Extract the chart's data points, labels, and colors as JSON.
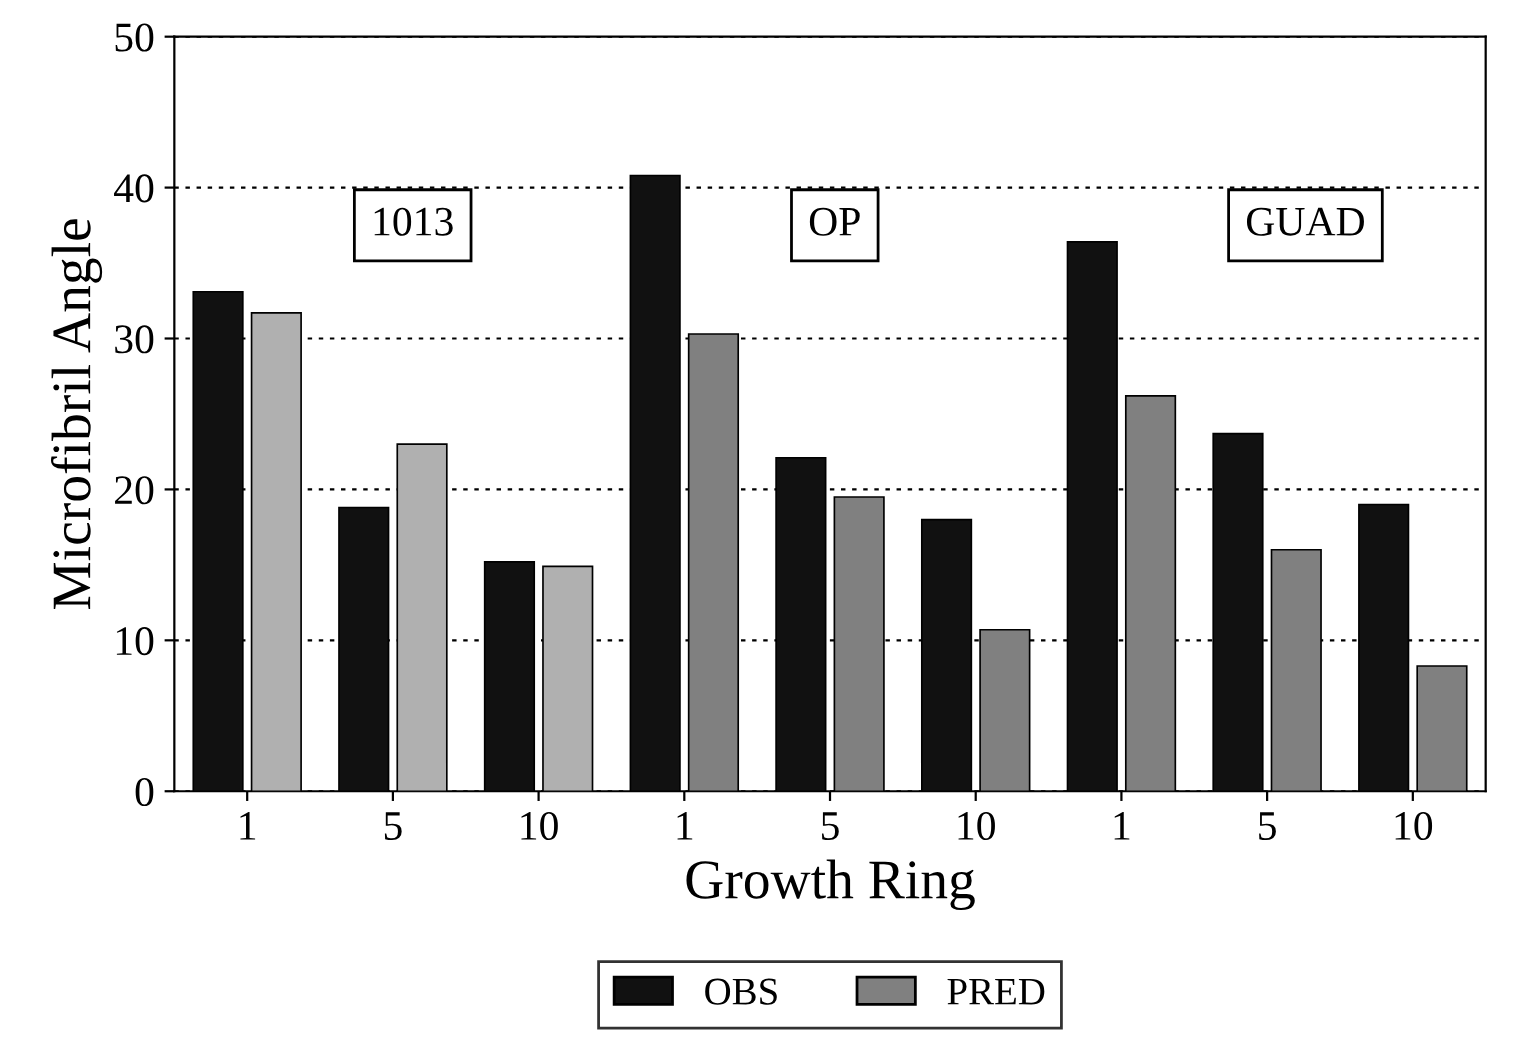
{
  "chart_data": {
    "type": "bar",
    "xlabel": "Growth Ring",
    "ylabel": "Microfibril Angle",
    "categories": [
      "1",
      "5",
      "10",
      "1",
      "5",
      "10",
      "1",
      "5",
      "10"
    ],
    "series": [
      {
        "name": "OBS",
        "color": "#111111",
        "values": [
          33.1,
          18.8,
          15.2,
          40.8,
          22.1,
          18.0,
          36.4,
          23.7,
          19.0
        ]
      },
      {
        "name": "PRED",
        "color": "#808080",
        "colors": [
          "#b0b0b0",
          "#b0b0b0",
          "#b0b0b0",
          "#808080",
          "#808080",
          "#808080",
          "#808080",
          "#808080",
          "#808080"
        ],
        "values": [
          31.7,
          23.0,
          14.9,
          30.3,
          19.5,
          10.7,
          26.2,
          16.0,
          8.3
        ]
      }
    ],
    "ylim": [
      0,
      50
    ],
    "yticks": [
      0,
      10,
      20,
      30,
      40,
      50
    ],
    "grid": "y",
    "legend": "bottom",
    "annotations": [
      "1013",
      "OP",
      "GUAD"
    ]
  }
}
